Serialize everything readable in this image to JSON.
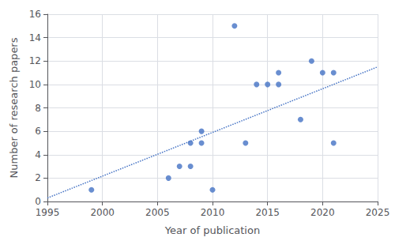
{
  "chart_data": {
    "type": "scatter",
    "xlabel": "Year of publication",
    "ylabel": "Number of research papers",
    "xlim": [
      1995,
      2025
    ],
    "ylim": [
      0,
      16
    ],
    "xticks": [
      1995,
      2000,
      2005,
      2010,
      2015,
      2020,
      2025
    ],
    "yticks": [
      0,
      2,
      4,
      6,
      8,
      10,
      12,
      14,
      16
    ],
    "grid": true,
    "series": [
      {
        "type": "scatter",
        "color": "#4472C4",
        "marker": "circle",
        "x": [
          1999,
          2006,
          2007,
          2008,
          2008,
          2009,
          2009,
          2010,
          2012,
          2013,
          2014,
          2015,
          2016,
          2016,
          2018,
          2019,
          2020,
          2021,
          2021
        ],
        "values": [
          1,
          2,
          3,
          3,
          5,
          5,
          6,
          1,
          15,
          5,
          10,
          10,
          11,
          10,
          7,
          12,
          11,
          11,
          5
        ]
      },
      {
        "type": "line",
        "color": "#4472C4",
        "line_style": "dotted",
        "x": [
          1995,
          2025
        ],
        "values": [
          0.3,
          11.5
        ]
      }
    ]
  }
}
